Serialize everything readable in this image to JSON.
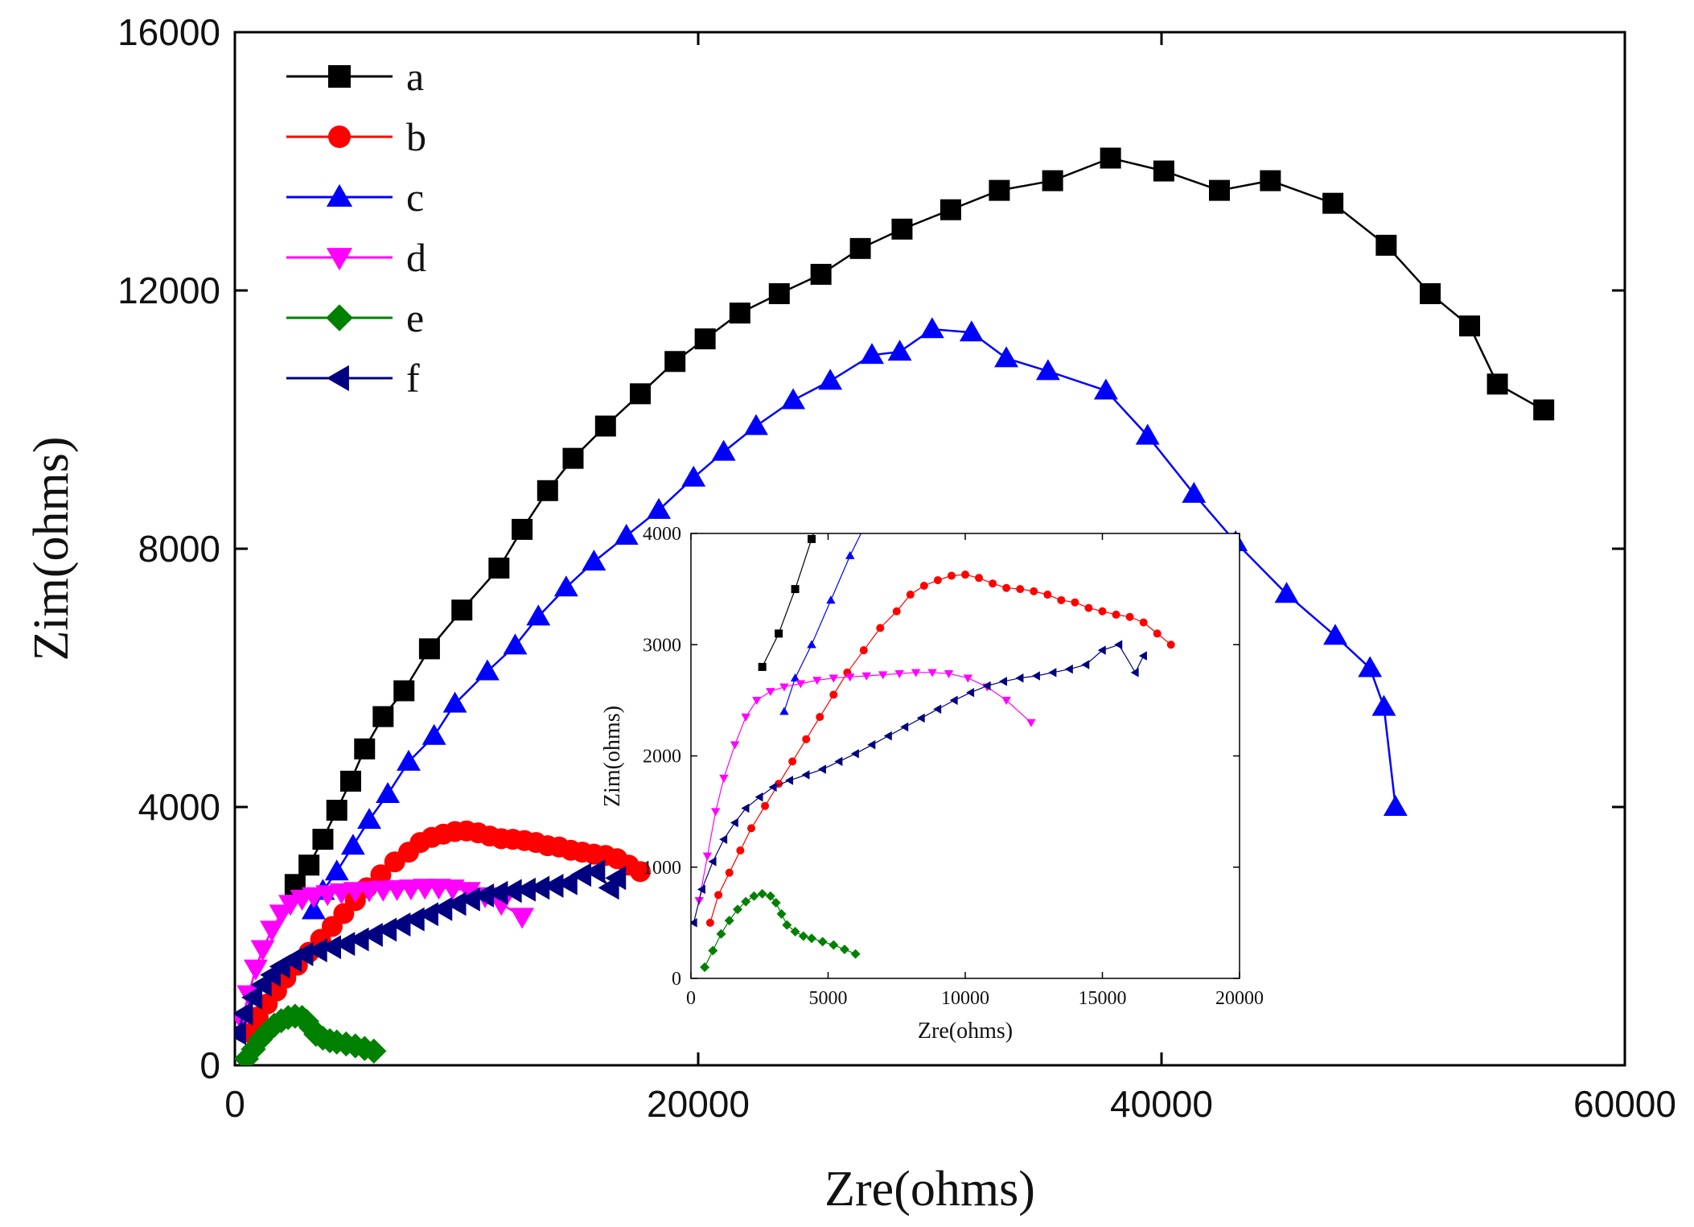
{
  "chart_data": [
    {
      "type": "line",
      "panel": "main",
      "xlabel": "Zre(ohms)",
      "ylabel": "Zim(ohms)",
      "xlim": [
        0,
        60000
      ],
      "ylim": [
        0,
        16000
      ],
      "xticks": [
        0,
        20000,
        40000,
        60000
      ],
      "yticks": [
        0,
        4000,
        8000,
        12000,
        16000
      ],
      "legend_position": "top-left",
      "series": [
        {
          "name": "a",
          "color": "#000000",
          "marker": "square",
          "x": [
            2600,
            3200,
            3800,
            4400,
            5000,
            5600,
            6400,
            7300,
            8400,
            9800,
            11400,
            12400,
            13500,
            14600,
            16000,
            17500,
            19000,
            20300,
            21800,
            23500,
            25300,
            27000,
            28800,
            30900,
            33000,
            35300,
            37800,
            40100,
            42500,
            44700,
            47400,
            49700,
            51600,
            53300,
            54500,
            56500
          ],
          "y": [
            2800,
            3100,
            3500,
            3950,
            4400,
            4900,
            5400,
            5800,
            6450,
            7050,
            7700,
            8300,
            8900,
            9400,
            9900,
            10400,
            10900,
            11250,
            11650,
            11950,
            12250,
            12650,
            12950,
            13250,
            13550,
            13700,
            14050,
            13850,
            13550,
            13700,
            13350,
            12700,
            11950,
            11450,
            10550,
            10150
          ]
        },
        {
          "name": "b",
          "color": "#ff0000",
          "marker": "circle",
          "x": [
            700,
            1000,
            1400,
            1800,
            2200,
            2700,
            3200,
            3700,
            4200,
            4700,
            5200,
            5700,
            6300,
            6900,
            7500,
            8000,
            8500,
            9000,
            9500,
            10000,
            10500,
            11000,
            11500,
            12000,
            12500,
            13000,
            13500,
            14000,
            14500,
            15000,
            15500,
            16000,
            16500,
            17000,
            17500
          ],
          "y": [
            500,
            750,
            950,
            1150,
            1350,
            1550,
            1750,
            1950,
            2150,
            2350,
            2550,
            2750,
            2950,
            3150,
            3300,
            3450,
            3530,
            3580,
            3620,
            3630,
            3600,
            3550,
            3510,
            3500,
            3480,
            3450,
            3400,
            3380,
            3330,
            3300,
            3270,
            3250,
            3200,
            3100,
            3000
          ]
        },
        {
          "name": "c",
          "color": "#0000ff",
          "marker": "triangle-up",
          "x": [
            3400,
            3800,
            4400,
            5100,
            5800,
            6600,
            7500,
            8600,
            9500,
            10900,
            12100,
            13100,
            14300,
            15500,
            16900,
            18300,
            19800,
            21100,
            22500,
            24100,
            25700,
            27500,
            28700,
            30100,
            31800,
            33300,
            35100,
            37600,
            39400,
            41400,
            43200,
            45400,
            47500,
            49000,
            49600,
            50100
          ],
          "y": [
            2400,
            2700,
            3000,
            3400,
            3800,
            4200,
            4700,
            5100,
            5600,
            6100,
            6500,
            6950,
            7400,
            7800,
            8200,
            8600,
            9100,
            9500,
            9900,
            10300,
            10600,
            11000,
            11050,
            11400,
            11350,
            10950,
            10750,
            10450,
            9750,
            8850,
            8100,
            7300,
            6650,
            6150,
            5550,
            4000
          ]
        },
        {
          "name": "d",
          "color": "#ff00ff",
          "marker": "triangle-down",
          "x": [
            300,
            600,
            900,
            1200,
            1600,
            2000,
            2400,
            2900,
            3400,
            4000,
            4600,
            5200,
            5800,
            6400,
            7000,
            7600,
            8200,
            8800,
            9400,
            10100,
            10800,
            11500,
            12400
          ],
          "y": [
            700,
            1100,
            1500,
            1800,
            2100,
            2350,
            2500,
            2580,
            2620,
            2650,
            2680,
            2700,
            2710,
            2720,
            2730,
            2740,
            2750,
            2750,
            2740,
            2700,
            2620,
            2500,
            2300
          ]
        },
        {
          "name": "e",
          "color": "#008000",
          "marker": "diamond",
          "x": [
            500,
            800,
            1100,
            1400,
            1700,
            2000,
            2300,
            2600,
            2900,
            3100,
            3300,
            3500,
            3800,
            4100,
            4400,
            4800,
            5200,
            5600,
            6000
          ],
          "y": [
            100,
            250,
            400,
            520,
            620,
            690,
            740,
            760,
            740,
            680,
            580,
            480,
            420,
            380,
            360,
            330,
            300,
            260,
            220
          ]
        },
        {
          "name": "f",
          "color": "#000080",
          "marker": "triangle-left",
          "x": [
            100,
            400,
            800,
            1200,
            1600,
            2000,
            2500,
            3000,
            3600,
            4200,
            4800,
            5400,
            6000,
            6600,
            7200,
            7800,
            8400,
            9000,
            9600,
            10200,
            10800,
            11400,
            12000,
            12600,
            13200,
            13800,
            14400,
            15000,
            15600,
            16200,
            16500
          ],
          "y": [
            500,
            800,
            1050,
            1250,
            1400,
            1530,
            1630,
            1720,
            1780,
            1830,
            1880,
            1950,
            2020,
            2100,
            2180,
            2260,
            2340,
            2420,
            2500,
            2570,
            2630,
            2670,
            2700,
            2720,
            2750,
            2780,
            2820,
            2950,
            3000,
            2750,
            2900
          ]
        }
      ]
    },
    {
      "type": "line",
      "panel": "inset",
      "xlabel": "Zre(ohms)",
      "ylabel": "Zim(ohms)",
      "xlim": [
        0,
        20000
      ],
      "ylim": [
        0,
        4000
      ],
      "xticks": [
        0,
        5000,
        10000,
        15000,
        20000
      ],
      "yticks": [
        0,
        1000,
        2000,
        3000,
        4000
      ],
      "series_refs": [
        "a",
        "b",
        "c",
        "d",
        "e",
        "f"
      ]
    }
  ]
}
